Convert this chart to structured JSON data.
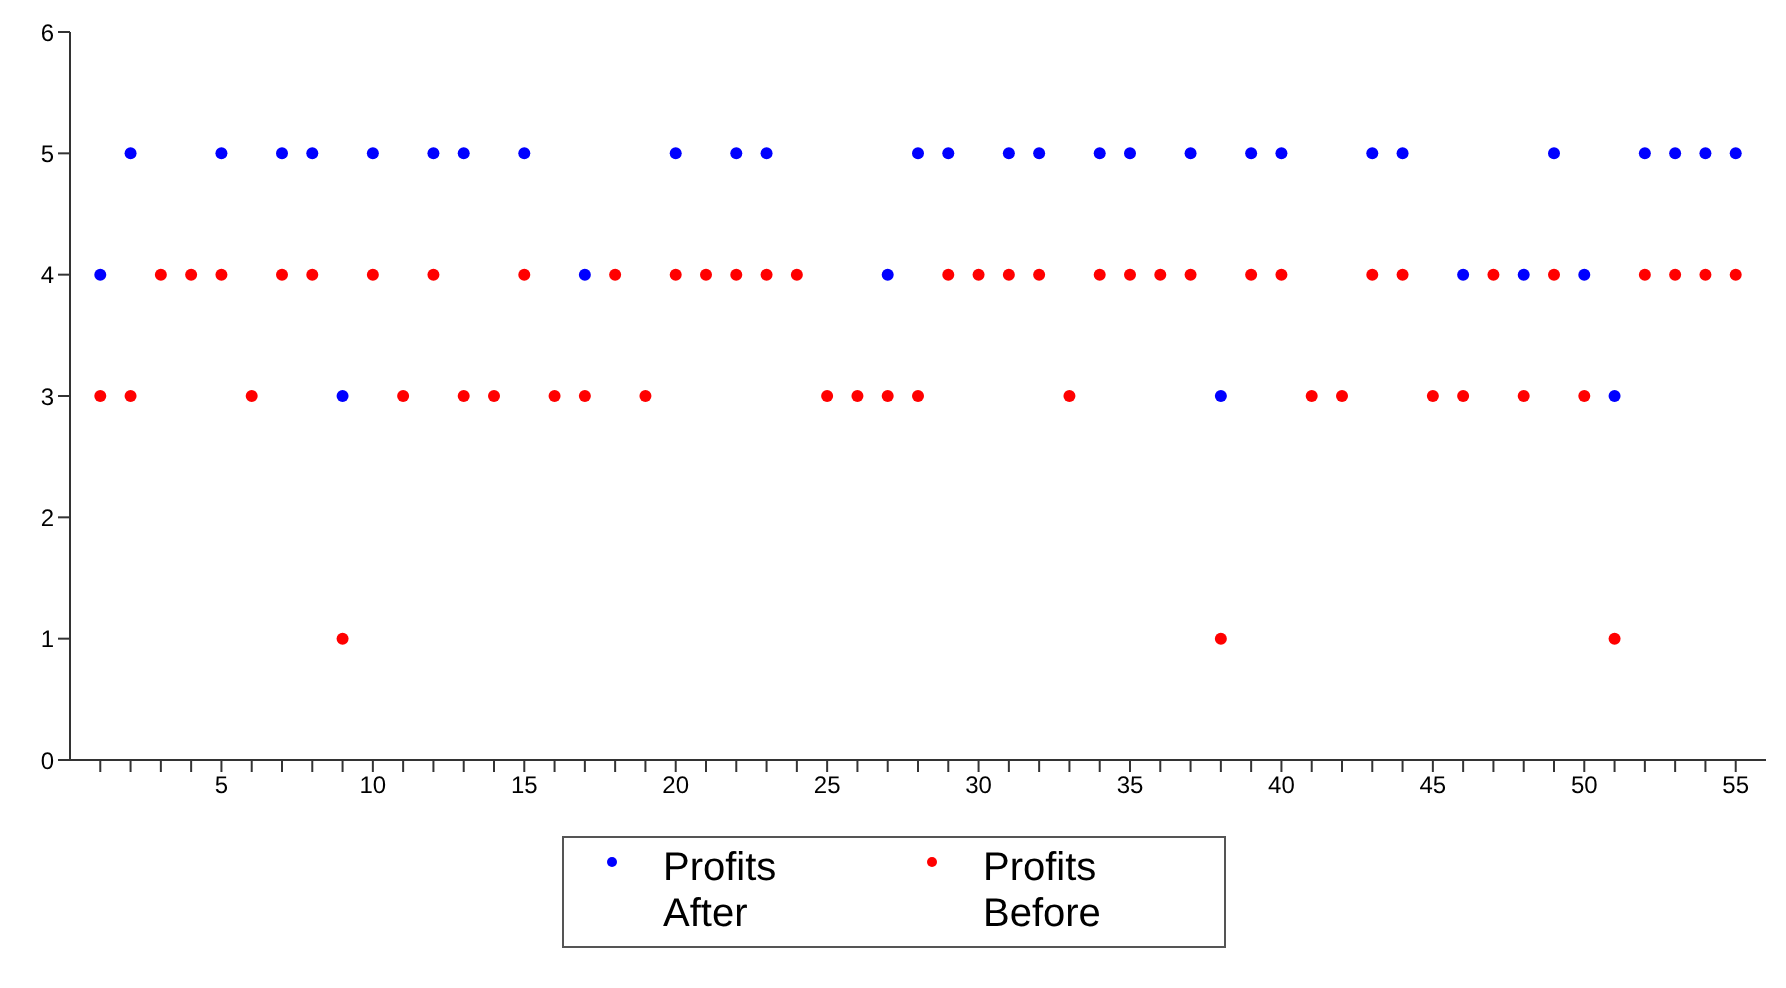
{
  "chart_data": {
    "type": "scatter",
    "x": [
      1,
      2,
      3,
      4,
      5,
      6,
      7,
      8,
      9,
      10,
      11,
      12,
      13,
      14,
      15,
      16,
      17,
      18,
      19,
      20,
      21,
      22,
      23,
      24,
      25,
      26,
      27,
      28,
      29,
      30,
      31,
      32,
      33,
      34,
      35,
      36,
      37,
      38,
      39,
      40,
      41,
      42,
      43,
      44,
      45,
      46,
      47,
      48,
      49,
      50,
      51,
      52,
      53,
      54,
      55
    ],
    "series": [
      {
        "name": "Profits After",
        "color": "#0000ff",
        "values": [
          4,
          5,
          null,
          null,
          5,
          null,
          5,
          5,
          3,
          5,
          null,
          5,
          5,
          null,
          5,
          null,
          4,
          null,
          null,
          5,
          null,
          5,
          5,
          null,
          null,
          null,
          4,
          5,
          5,
          null,
          5,
          5,
          null,
          5,
          5,
          null,
          5,
          3,
          5,
          5,
          null,
          null,
          5,
          5,
          null,
          4,
          null,
          4,
          5,
          4,
          3,
          5,
          5,
          5,
          5
        ]
      },
      {
        "name": "Profits Before",
        "color": "#ff0000",
        "values": [
          3,
          3,
          4,
          4,
          4,
          3,
          4,
          4,
          1,
          4,
          3,
          4,
          3,
          3,
          4,
          3,
          3,
          4,
          3,
          4,
          4,
          4,
          4,
          4,
          3,
          3,
          3,
          3,
          4,
          4,
          4,
          4,
          3,
          4,
          4,
          4,
          4,
          1,
          4,
          4,
          3,
          3,
          4,
          4,
          3,
          3,
          4,
          3,
          4,
          3,
          1,
          4,
          4,
          4,
          4
        ]
      }
    ],
    "xlim": [
      0,
      56
    ],
    "xticks": [
      {
        "value": 1,
        "label": null
      },
      {
        "value": 2,
        "label": null
      },
      {
        "value": 3,
        "label": null
      },
      {
        "value": 4,
        "label": null
      },
      5,
      {
        "value": 6,
        "label": null
      },
      {
        "value": 7,
        "label": null
      },
      {
        "value": 8,
        "label": null
      },
      {
        "value": 9,
        "label": null
      },
      10,
      {
        "value": 11,
        "label": null
      },
      {
        "value": 12,
        "label": null
      },
      {
        "value": 13,
        "label": null
      },
      {
        "value": 14,
        "label": null
      },
      15,
      {
        "value": 16,
        "label": null
      },
      {
        "value": 17,
        "label": null
      },
      {
        "value": 18,
        "label": null
      },
      {
        "value": 19,
        "label": null
      },
      20,
      {
        "value": 21,
        "label": null
      },
      {
        "value": 22,
        "label": null
      },
      {
        "value": 23,
        "label": null
      },
      {
        "value": 24,
        "label": null
      },
      25,
      {
        "value": 26,
        "label": null
      },
      {
        "value": 27,
        "label": null
      },
      {
        "value": 28,
        "label": null
      },
      {
        "value": 29,
        "label": null
      },
      30,
      {
        "value": 31,
        "label": null
      },
      {
        "value": 32,
        "label": null
      },
      {
        "value": 33,
        "label": null
      },
      {
        "value": 34,
        "label": null
      },
      35,
      {
        "value": 36,
        "label": null
      },
      {
        "value": 37,
        "label": null
      },
      {
        "value": 38,
        "label": null
      },
      {
        "value": 39,
        "label": null
      },
      40,
      {
        "value": 41,
        "label": null
      },
      {
        "value": 42,
        "label": null
      },
      {
        "value": 43,
        "label": null
      },
      {
        "value": 44,
        "label": null
      },
      45,
      {
        "value": 46,
        "label": null
      },
      {
        "value": 47,
        "label": null
      },
      {
        "value": 48,
        "label": null
      },
      {
        "value": 49,
        "label": null
      },
      50,
      {
        "value": 51,
        "label": null
      },
      {
        "value": 52,
        "label": null
      },
      {
        "value": 53,
        "label": null
      },
      {
        "value": 54,
        "label": null
      },
      55
    ],
    "ylim": [
      0,
      6
    ],
    "yticks": [
      0,
      1,
      2,
      3,
      4,
      5,
      6
    ],
    "grid": false,
    "legend": "bottom",
    "marker": "circle"
  }
}
